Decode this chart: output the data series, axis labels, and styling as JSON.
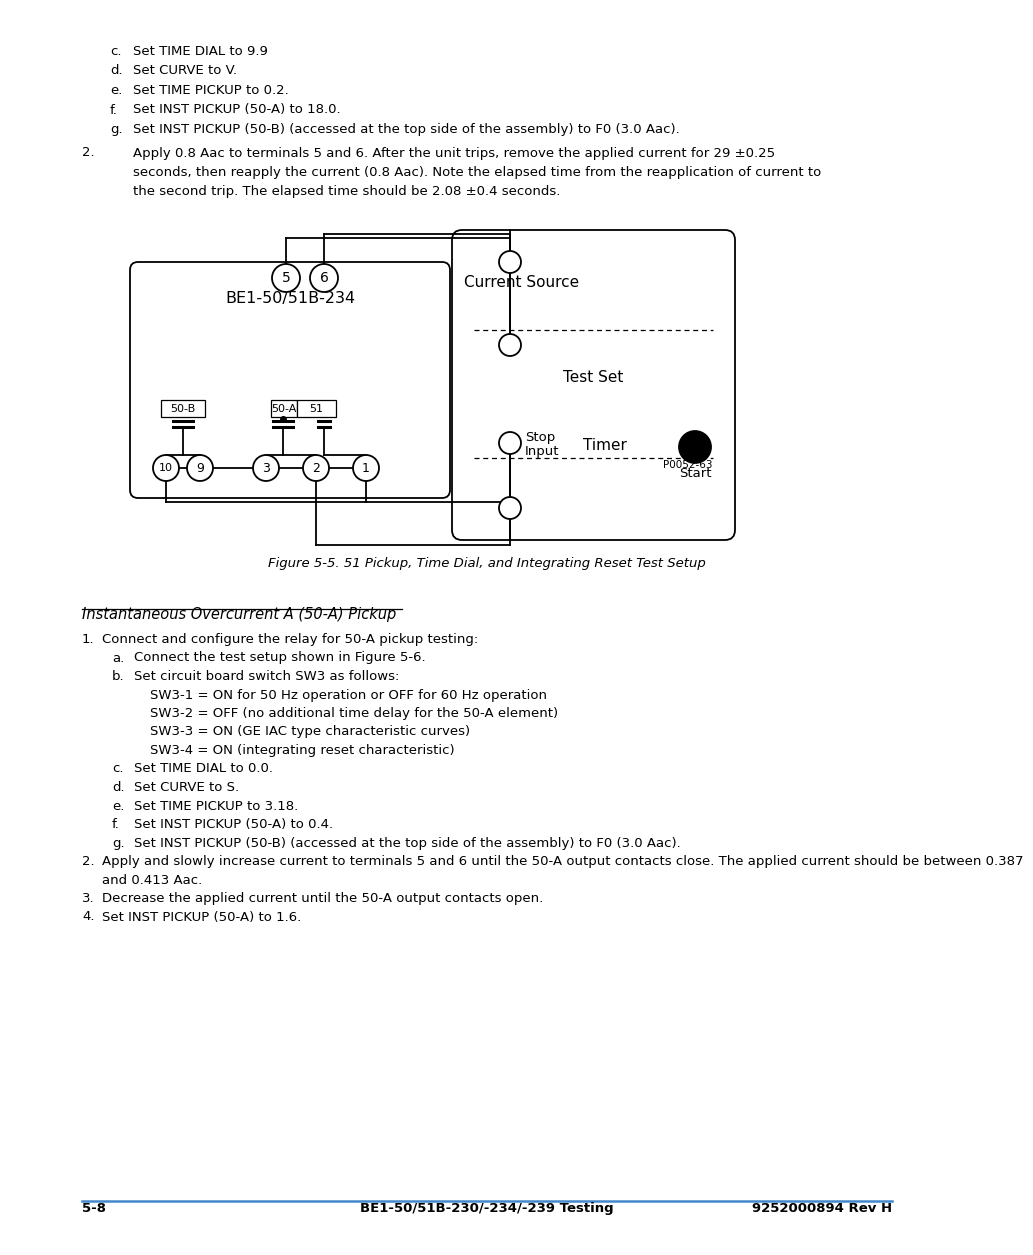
{
  "page_bg": "#ffffff",
  "text_color": "#000000",
  "top_items": [
    {
      "label": "c.",
      "text": "Set TIME DIAL to 9.9"
    },
    {
      "label": "d.",
      "text": "Set CURVE to V."
    },
    {
      "label": "e.",
      "text": "Set TIME PICKUP to 0.2."
    },
    {
      "label": "f.",
      "text": "Set INST PICKUP (50-A) to 18.0."
    },
    {
      "label": "g.",
      "text": "Set INST PICKUP (50-B) (accessed at the top side of the assembly) to F0 (3.0 Aac)."
    }
  ],
  "para2_label": "2.",
  "para2_lines": [
    "Apply 0.8 Aac to terminals 5 and 6. After the unit trips, remove the applied current for 29 ±0.25",
    "seconds, then reapply the current (0.8 Aac). Note the elapsed time from the reapplication of current to",
    "the second trip. The elapsed time should be 2.08 ±0.4 seconds."
  ],
  "figure_caption": "Figure 5-5. 51 Pickup, Time Dial, and Integrating Reset Test Setup",
  "section_title": "Instantaneous Overcurrent A (50-A) Pickup",
  "section_items": [
    {
      "level": 0,
      "label": "1.",
      "text": "Connect and configure the relay for 50-A pickup testing:",
      "lines": 1
    },
    {
      "level": 1,
      "label": "a.",
      "text": "Connect the test setup shown in Figure 5-6.",
      "lines": 1
    },
    {
      "level": 1,
      "label": "b.",
      "text": "Set circuit board switch SW3 as follows:",
      "lines": 1
    },
    {
      "level": 2,
      "label": "",
      "text": "SW3-1 = ON for 50 Hz operation or OFF for 60 Hz operation",
      "lines": 1
    },
    {
      "level": 2,
      "label": "",
      "text": "SW3-2 = OFF (no additional time delay for the 50-A element)",
      "lines": 1
    },
    {
      "level": 2,
      "label": "",
      "text": "SW3-3 = ON (GE IAC type characteristic curves)",
      "lines": 1
    },
    {
      "level": 2,
      "label": "",
      "text": "SW3-4 = ON (integrating reset characteristic)",
      "lines": 1
    },
    {
      "level": 1,
      "label": "c.",
      "text": "Set TIME DIAL to 0.0.",
      "lines": 1
    },
    {
      "level": 1,
      "label": "d.",
      "text": "Set CURVE to S.",
      "lines": 1
    },
    {
      "level": 1,
      "label": "e.",
      "text": "Set TIME PICKUP to 3.18.",
      "lines": 1
    },
    {
      "level": 1,
      "label": "f.",
      "text": "Set INST PICKUP (50-A) to 0.4.",
      "lines": 1
    },
    {
      "level": 1,
      "label": "g.",
      "text": "Set INST PICKUP (50-B) (accessed at the top side of the assembly) to F0 (3.0 Aac).",
      "lines": 1
    },
    {
      "level": 0,
      "label": "2.",
      "text": "Apply and slowly increase current to terminals 5 and 6 until the 50-A output contacts close. The applied current should be between 0.387 and 0.413 Aac.",
      "lines": 2
    },
    {
      "level": 0,
      "label": "3.",
      "text": "Decrease the applied current until the 50-A output contacts open.",
      "lines": 1
    },
    {
      "level": 0,
      "label": "4.",
      "text": "Set INST PICKUP (50-A) to 1.6.",
      "lines": 1
    }
  ],
  "footer_left": "5-8",
  "footer_center": "BE1-50/51B-230/-234/-239 Testing",
  "footer_right": "9252000894 Rev H"
}
